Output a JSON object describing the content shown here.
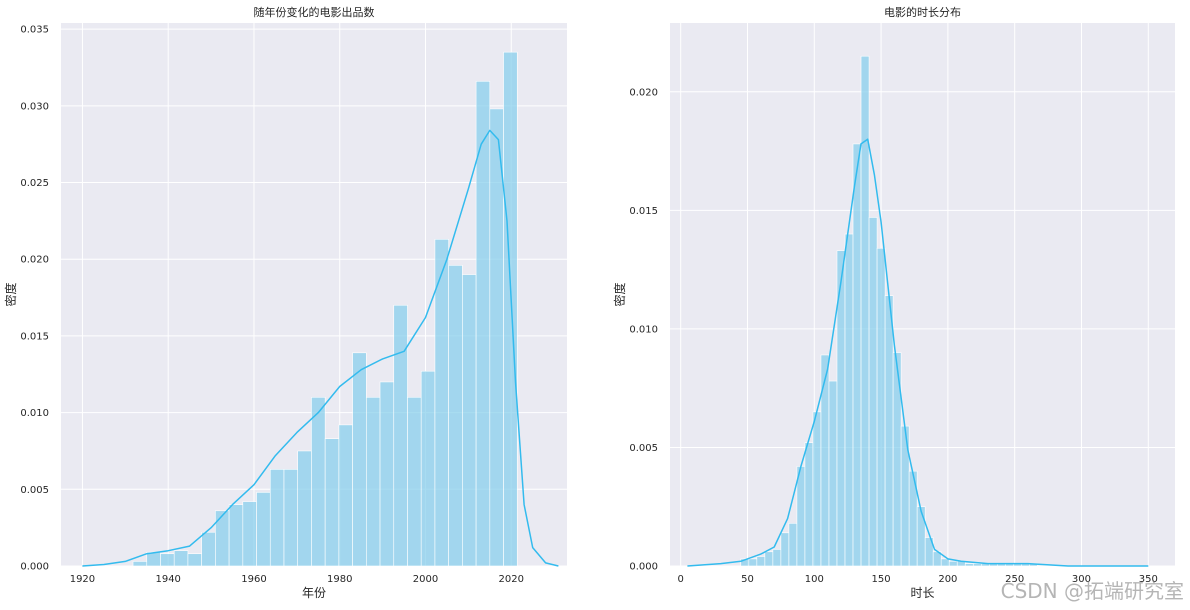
{
  "colors": {
    "bar": "#87CEEB",
    "kde": "#33BBEE",
    "plot_bg": "#EAEAF2",
    "grid": "#FFFFFF"
  },
  "watermark": "CSDN @拓端研究室",
  "chart_data": [
    {
      "type": "bar",
      "title": "随年份变化的电影出品数",
      "xlabel": "年份",
      "ylabel": "密度",
      "xlim": [
        1915,
        2033
      ],
      "ylim": [
        0,
        0.0354
      ],
      "xticks": [
        1920,
        1940,
        1960,
        1980,
        2000,
        2020
      ],
      "yticks": [
        0.0,
        0.005,
        0.01,
        0.015,
        0.02,
        0.025,
        0.03,
        0.035
      ],
      "ytick_labels": [
        "0.000",
        "0.005",
        "0.010",
        "0.015",
        "0.020",
        "0.025",
        "0.030",
        "0.035"
      ],
      "bin_edges": [
        1931.8,
        1935.0,
        1938.2,
        1941.4,
        1944.6,
        1947.8,
        1951.0,
        1954.2,
        1957.4,
        1960.6,
        1963.8,
        1967.0,
        1970.2,
        1973.4,
        1976.6,
        1979.8,
        1983.0,
        1986.2,
        1989.4,
        1992.6,
        1995.8,
        1999.0,
        2002.2,
        2005.4,
        2008.6,
        2011.8,
        2015.0,
        2018.2,
        2021.4
      ],
      "values": [
        0.0003,
        0.0009,
        0.0008,
        0.001,
        0.0008,
        0.0022,
        0.0036,
        0.004,
        0.0042,
        0.0048,
        0.0063,
        0.0063,
        0.0075,
        0.011,
        0.0083,
        0.0092,
        0.0139,
        0.011,
        0.012,
        0.017,
        0.011,
        0.0127,
        0.0213,
        0.0196,
        0.019,
        0.0316,
        0.0298,
        0.0335
      ],
      "kde_x": [
        1920,
        1925,
        1930,
        1935,
        1940,
        1945,
        1950,
        1955,
        1960,
        1965,
        1970,
        1975,
        1980,
        1985,
        1990,
        1995,
        2000,
        2005,
        2010,
        2013,
        2015,
        2017,
        2019,
        2021,
        2023,
        2025,
        2028,
        2031
      ],
      "kde_y": [
        0.0,
        0.0001,
        0.0003,
        0.0008,
        0.001,
        0.0013,
        0.0025,
        0.004,
        0.0053,
        0.0072,
        0.0087,
        0.01,
        0.0117,
        0.0128,
        0.0135,
        0.014,
        0.0162,
        0.02,
        0.0246,
        0.0275,
        0.0284,
        0.0278,
        0.0225,
        0.012,
        0.004,
        0.0012,
        0.0002,
        0.0
      ]
    },
    {
      "type": "bar",
      "title": "电影的时长分布",
      "xlabel": "时长",
      "ylabel": "密度",
      "xlim": [
        -8,
        370
      ],
      "ylim": [
        0,
        0.0229
      ],
      "xticks": [
        0,
        50,
        100,
        150,
        200,
        250,
        300,
        350
      ],
      "yticks": [
        0.0,
        0.005,
        0.01,
        0.015,
        0.02
      ],
      "ytick_labels": [
        "0.000",
        "0.005",
        "0.010",
        "0.015",
        "0.020"
      ],
      "bin_edges": [
        45,
        51,
        57,
        63,
        69,
        75,
        81,
        87,
        93,
        99,
        105,
        111,
        117,
        123,
        129,
        135,
        141,
        147,
        153,
        159,
        165,
        171,
        177,
        183,
        189,
        195,
        201,
        207,
        213,
        219,
        225,
        231,
        237,
        243,
        249,
        255,
        261,
        267
      ],
      "values": [
        0.0003,
        0.0003,
        0.0004,
        0.0006,
        0.0007,
        0.0014,
        0.0018,
        0.0042,
        0.0052,
        0.0065,
        0.0089,
        0.0078,
        0.0133,
        0.014,
        0.0178,
        0.0215,
        0.0147,
        0.0134,
        0.0114,
        0.009,
        0.0059,
        0.004,
        0.0025,
        0.0012,
        0.0006,
        0.0003,
        0.0002,
        0.0002,
        0.0001,
        0.0001,
        0.0001,
        0.0001,
        0.0001,
        0.0001,
        0.0001,
        0.0001,
        0.0001
      ],
      "kde_x": [
        5,
        30,
        45,
        60,
        70,
        80,
        90,
        100,
        110,
        120,
        130,
        135,
        140,
        145,
        150,
        160,
        170,
        180,
        190,
        200,
        210,
        230,
        260,
        290,
        320,
        350
      ],
      "kde_y": [
        0.0,
        0.0001,
        0.0002,
        0.0005,
        0.0008,
        0.002,
        0.0042,
        0.0061,
        0.0083,
        0.012,
        0.016,
        0.0178,
        0.018,
        0.0165,
        0.0145,
        0.0093,
        0.0049,
        0.0023,
        0.0007,
        0.0003,
        0.0002,
        0.0001,
        0.0001,
        0.0,
        0.0,
        0.0
      ]
    }
  ]
}
